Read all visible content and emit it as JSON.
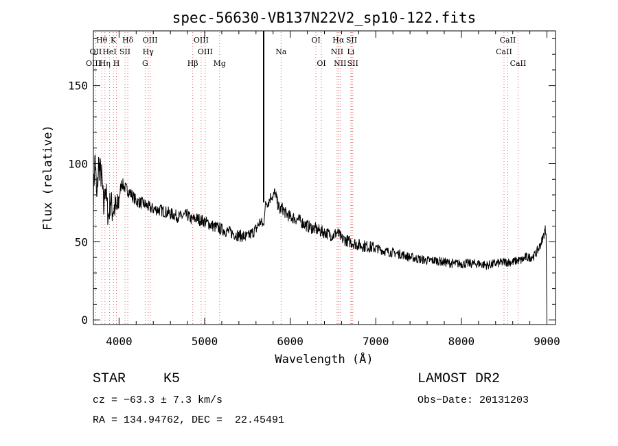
{
  "chart_data": {
    "type": "line",
    "title": "spec-56630-VB137N22V2_sp10-122.fits",
    "xlabel": "Wavelength (Å)",
    "ylabel": "Flux (relative)",
    "xlim": [
      3700,
      9100
    ],
    "ylim": [
      -3,
      185
    ],
    "xticks": [
      4000,
      5000,
      6000,
      7000,
      8000,
      9000
    ],
    "yticks": [
      0,
      50,
      100,
      150
    ],
    "grid": false,
    "series": [
      {
        "x": [
          3700,
          3720,
          3740,
          3760,
          3780,
          3800,
          3820,
          3840,
          3860,
          3880,
          3900,
          3920,
          3950,
          3980,
          4000,
          4030,
          4060,
          4100,
          4150,
          4200,
          4250,
          4300,
          4350,
          4400,
          4500,
          4600,
          4700,
          4800,
          4850,
          4900,
          5000,
          5100,
          5200,
          5300,
          5400,
          5500,
          5600,
          5650,
          5690,
          5700,
          5720,
          5750,
          5780,
          5800,
          5820,
          5850,
          5880,
          5900,
          5950,
          6000,
          6100,
          6200,
          6300,
          6400,
          6500,
          6550,
          6600,
          6700,
          6800,
          6900,
          7000,
          7100,
          7200,
          7300,
          7400,
          7500,
          7600,
          7700,
          7800,
          7900,
          8000,
          8100,
          8200,
          8300,
          8400,
          8500,
          8600,
          8650,
          8700,
          8750,
          8800,
          8850,
          8900,
          8950,
          8980,
          8990,
          9000
        ],
        "y": [
          80,
          105,
          75,
          100,
          95,
          90,
          70,
          88,
          72,
          66,
          78,
          70,
          72,
          70,
          78,
          88,
          85,
          83,
          80,
          76,
          75,
          74,
          72,
          71,
          70,
          68,
          66,
          67,
          64,
          65,
          63,
          60,
          58,
          56,
          54,
          53,
          58,
          63,
          60,
          70,
          75,
          76,
          80,
          78,
          82,
          75,
          70,
          72,
          68,
          66,
          64,
          60,
          58,
          56,
          54,
          56,
          52,
          50,
          48,
          47,
          46,
          44,
          43,
          42,
          40,
          39,
          38,
          38,
          37,
          36,
          36,
          36,
          36,
          35,
          36,
          37,
          37,
          38,
          38,
          40,
          40,
          41,
          45,
          52,
          58,
          55,
          0
        ]
      }
    ],
    "lines": [
      {
        "label": "Hθ",
        "wl": 3798,
        "row": 0
      },
      {
        "label": "K",
        "wl": 3934,
        "row": 0
      },
      {
        "label": "Hδ",
        "wl": 4102,
        "row": 0
      },
      {
        "label": "OIII",
        "wl": 4363,
        "row": 0
      },
      {
        "label": "OIII",
        "wl": 4959,
        "row": 0
      },
      {
        "label": "OI",
        "wl": 6300,
        "row": 0
      },
      {
        "label": "Hα",
        "wl": 6563,
        "row": 0
      },
      {
        "label": "SII",
        "wl": 6717,
        "row": 0
      },
      {
        "label": "CaII",
        "wl": 8542,
        "row": 0
      },
      {
        "label": "OII",
        "wl": 3727,
        "row": 1
      },
      {
        "label": "HeI",
        "wl": 3889,
        "row": 1
      },
      {
        "label": "SII",
        "wl": 4069,
        "row": 1
      },
      {
        "label": "Hγ",
        "wl": 4340,
        "row": 1
      },
      {
        "label": "OIII",
        "wl": 5007,
        "row": 1
      },
      {
        "label": "Na",
        "wl": 5893,
        "row": 1
      },
      {
        "label": "NII",
        "wl": 6548,
        "row": 1
      },
      {
        "label": "Li",
        "wl": 6708,
        "row": 1
      },
      {
        "label": "CaII",
        "wl": 8498,
        "row": 1
      },
      {
        "label": "OIII",
        "wl": 3700,
        "row": 2
      },
      {
        "label": "Hη",
        "wl": 3835,
        "row": 2
      },
      {
        "label": "H",
        "wl": 3969,
        "row": 2
      },
      {
        "label": "G",
        "wl": 4305,
        "row": 2
      },
      {
        "label": "Hβ",
        "wl": 4861,
        "row": 2
      },
      {
        "label": "Mg",
        "wl": 5175,
        "row": 2
      },
      {
        "label": "OI",
        "wl": 6364,
        "row": 2
      },
      {
        "label": "NII",
        "wl": 6583,
        "row": 2
      },
      {
        "label": "SII",
        "wl": 6731,
        "row": 2
      },
      {
        "label": "CaII",
        "wl": 8662,
        "row": 2
      }
    ]
  },
  "info": {
    "class": "STAR",
    "subclass": "K5",
    "survey": "LAMOST DR2",
    "cz": "cz = −63.3 ± 7.3 km/s",
    "obs_date": "Obs−Date: 20131203",
    "coords": "RA = 134.94762, DEC =  22.45491"
  }
}
